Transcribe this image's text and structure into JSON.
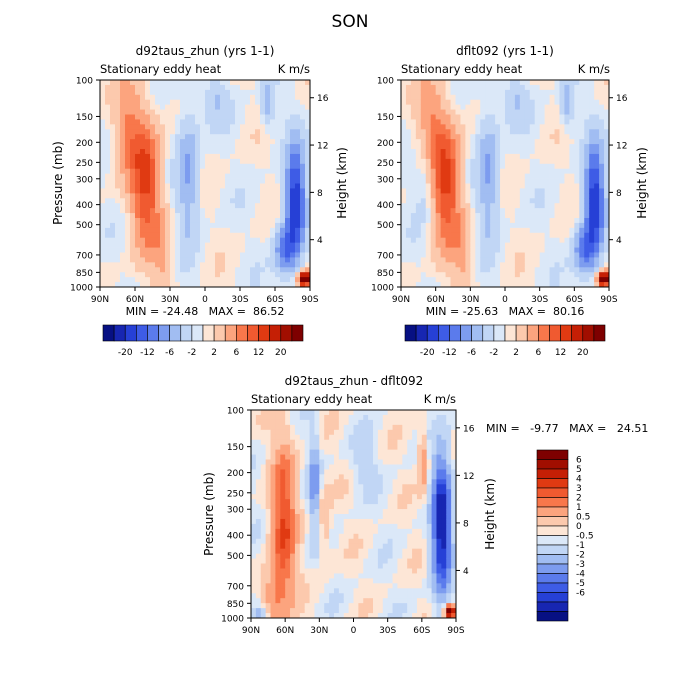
{
  "figure": {
    "title": "SON"
  },
  "colors": {
    "pos": [
      "#fde6d6",
      "#fcc9ad",
      "#fca47e",
      "#f8774b",
      "#f05a30",
      "#e03a12",
      "#c51f05",
      "#a10e00",
      "#7e0000"
    ],
    "neg": [
      "#dbe8f8",
      "#c1d6f5",
      "#a1bdf2",
      "#7d9cef",
      "#5b7bec",
      "#3e5ce6",
      "#2640d6",
      "#1726b2",
      "#071083"
    ]
  },
  "chart_data": [
    {
      "type": "heatmap",
      "title": "d92taus_zhun (yrs 1-1)",
      "subtitle_left": "Stationary eddy heat",
      "subtitle_right": "K m/s",
      "xlabel": "",
      "ylabel": "Pressure (mb)",
      "ylabel_right": "Height (km)",
      "x_ticks": [
        "90N",
        "60N",
        "30N",
        "0",
        "30S",
        "60S",
        "90S"
      ],
      "y_ticks": [
        "100",
        "150",
        "200",
        "250",
        "300",
        "400",
        "500",
        "700",
        "850",
        "1000"
      ],
      "y_ticks_right": [
        "16",
        "12",
        "8",
        "4"
      ],
      "min_text": "MIN = -24.48   MAX =  86.52",
      "min": -24.48,
      "max": 86.52,
      "colorbar_labels": [
        "-20",
        "-12",
        "-6",
        "-2",
        "2",
        "6",
        "12",
        "20"
      ]
    },
    {
      "type": "heatmap",
      "title": "dflt092 (yrs 1-1)",
      "subtitle_left": "Stationary eddy heat",
      "subtitle_right": "K m/s",
      "xlabel": "",
      "ylabel": "",
      "ylabel_right": "Height (km)",
      "x_ticks": [
        "90N",
        "60N",
        "30N",
        "0",
        "30S",
        "60S",
        "90S"
      ],
      "y_ticks": [
        "100",
        "150",
        "200",
        "250",
        "300",
        "400",
        "500",
        "700",
        "850",
        "1000"
      ],
      "y_ticks_right": [
        "16",
        "12",
        "8",
        "4"
      ],
      "min_text": "MIN = -25.63   MAX =  80.16",
      "min": -25.63,
      "max": 80.16,
      "colorbar_labels": [
        "-20",
        "-12",
        "-6",
        "-2",
        "2",
        "6",
        "12",
        "20"
      ]
    },
    {
      "type": "heatmap",
      "title": "d92taus_zhun - dflt092",
      "subtitle_left": "Stationary eddy heat",
      "subtitle_right": "K m/s",
      "xlabel": "",
      "ylabel": "Pressure (mb)",
      "ylabel_right": "Height (km)",
      "x_ticks": [
        "90N",
        "60N",
        "30N",
        "0",
        "30S",
        "60S",
        "90S"
      ],
      "y_ticks": [
        "100",
        "150",
        "200",
        "250",
        "300",
        "400",
        "500",
        "700",
        "850",
        "1000"
      ],
      "y_ticks_right": [
        "16",
        "12",
        "8",
        "4"
      ],
      "min_text": "MIN =   -9.77   MAX =   24.51",
      "min": -9.77,
      "max": 24.51,
      "colorbar_labels": [
        "6",
        "5",
        "4",
        "3",
        "2",
        "1",
        "0.5",
        "0",
        "-0.5",
        "-1",
        "-2",
        "-3",
        "-4",
        "-5",
        "-6"
      ]
    }
  ]
}
